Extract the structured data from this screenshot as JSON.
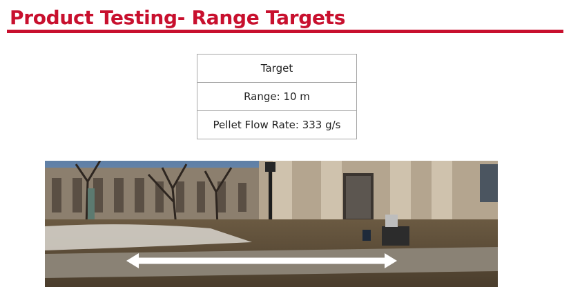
{
  "slide": {
    "title": "Product Testing- Range Targets"
  },
  "specs_table": {
    "rows": [
      {
        "label": "Target"
      },
      {
        "label": "Range: 10 m"
      },
      {
        "label": "Pellet Flow Rate: 333 g/s"
      }
    ]
  },
  "photo": {
    "subject": "campus building entrance with range arrow",
    "arrow_color": "#ffffff"
  },
  "colors": {
    "accent": "#c8102e"
  }
}
